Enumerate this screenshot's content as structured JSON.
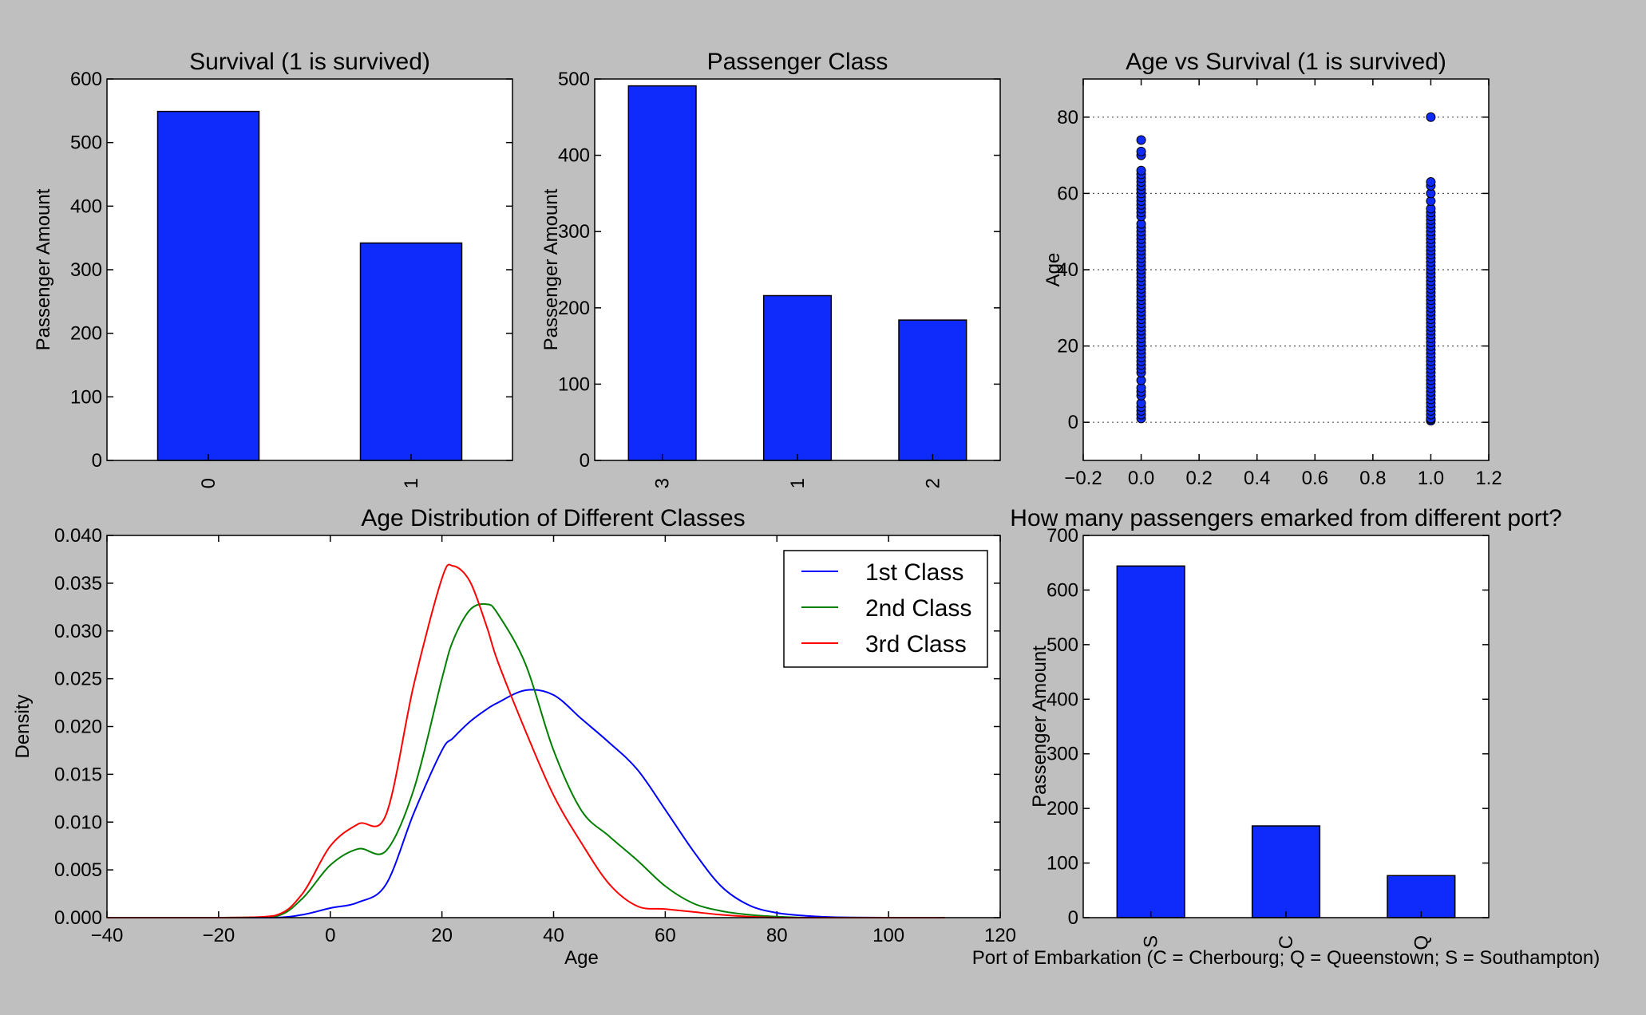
{
  "chart_data": [
    {
      "type": "bar",
      "title": "Survival (1 is survived)",
      "xlabel": "",
      "ylabel": "Passenger Amount",
      "categories": [
        "0",
        "1"
      ],
      "values": [
        549,
        342
      ],
      "ylim": [
        0,
        600
      ],
      "yticks": [
        0,
        100,
        200,
        300,
        400,
        500,
        600
      ],
      "grid": false,
      "bar_color": "#0f2bfb"
    },
    {
      "type": "bar",
      "title": "Passenger Class",
      "xlabel": "",
      "ylabel": "Passenger Amount",
      "categories": [
        "3",
        "1",
        "2"
      ],
      "values": [
        491,
        216,
        184
      ],
      "ylim": [
        0,
        500
      ],
      "yticks": [
        0,
        100,
        200,
        300,
        400,
        500
      ],
      "grid": false,
      "bar_color": "#0f2bfb"
    },
    {
      "type": "scatter",
      "title": "Age vs Survival (1 is survived)",
      "xlabel": "",
      "ylabel": "Age",
      "xlim": [
        -0.2,
        1.2
      ],
      "ylim": [
        -10,
        90
      ],
      "xticks": [
        "−0.2",
        "0.0",
        "0.2",
        "0.4",
        "0.6",
        "0.8",
        "1.0",
        "1.2"
      ],
      "yticks": [
        0,
        20,
        40,
        60,
        80
      ],
      "grid": "y-dotted",
      "point_color": "#0f2bfb",
      "series": [
        {
          "x": 0,
          "y": [
            1,
            2,
            3,
            4,
            5,
            7,
            8,
            9,
            11,
            13,
            14,
            15,
            16,
            17,
            18,
            19,
            20,
            21,
            22,
            23,
            24,
            25,
            26,
            27,
            28,
            29,
            30,
            31,
            32,
            33,
            34,
            35,
            36,
            37,
            38,
            39,
            40,
            41,
            42,
            43,
            44,
            45,
            46,
            47,
            48,
            49,
            50,
            51,
            52,
            54,
            55,
            56,
            57,
            58,
            59,
            60,
            61,
            62,
            63,
            64,
            65,
            66,
            70,
            71,
            74
          ]
        },
        {
          "x": 1,
          "y": [
            0.4,
            0.8,
            1,
            2,
            3,
            4,
            5,
            6,
            7,
            8,
            9,
            10,
            11,
            12,
            13,
            14,
            15,
            16,
            17,
            18,
            19,
            20,
            21,
            22,
            23,
            24,
            25,
            26,
            27,
            28,
            29,
            30,
            31,
            32,
            33,
            34,
            35,
            36,
            37,
            38,
            39,
            40,
            41,
            42,
            43,
            44,
            45,
            46,
            47,
            48,
            49,
            50,
            51,
            52,
            53,
            54,
            55,
            56,
            58,
            60,
            62,
            63,
            80
          ]
        }
      ]
    },
    {
      "type": "line",
      "title": "Age Distribution of Different Classes",
      "xlabel": "Age",
      "ylabel": "Density",
      "xlim": [
        -40,
        120
      ],
      "ylim": [
        0,
        0.04
      ],
      "xticks": [
        "−40",
        "−20",
        "0",
        "20",
        "40",
        "60",
        "80",
        "100",
        "120"
      ],
      "yticks": [
        "0.000",
        "0.005",
        "0.010",
        "0.015",
        "0.020",
        "0.025",
        "0.030",
        "0.035",
        "0.040"
      ],
      "grid": false,
      "legend": "top-right",
      "x": [
        -40,
        -20,
        -10,
        -5,
        0,
        5,
        10,
        15,
        20,
        22,
        25,
        28,
        30,
        35,
        40,
        45,
        50,
        55,
        60,
        65,
        70,
        75,
        80,
        85,
        90,
        100,
        110
      ],
      "series": [
        {
          "name": "1st Class",
          "color": "#0000ff",
          "values": [
            0,
            0,
            0,
            0.0003,
            0.001,
            0.0016,
            0.0035,
            0.011,
            0.0175,
            0.0188,
            0.0205,
            0.0218,
            0.0225,
            0.0238,
            0.0233,
            0.0208,
            0.0183,
            0.0155,
            0.0113,
            0.007,
            0.0033,
            0.0013,
            0.0005,
            0.0002,
            5e-05,
            0,
            0
          ]
        },
        {
          "name": "2nd Class",
          "color": "#007f00",
          "values": [
            0,
            0,
            0.0001,
            0.002,
            0.0055,
            0.0072,
            0.007,
            0.0135,
            0.025,
            0.029,
            0.0322,
            0.0328,
            0.0318,
            0.0265,
            0.0175,
            0.0112,
            0.0085,
            0.006,
            0.0033,
            0.0015,
            0.0007,
            0.0003,
            0.0001,
            0,
            0,
            0,
            0
          ]
        },
        {
          "name": "3rd Class",
          "color": "#ff0000",
          "values": [
            0,
            0,
            0.0002,
            0.0025,
            0.0075,
            0.0098,
            0.0108,
            0.0245,
            0.0355,
            0.0368,
            0.0352,
            0.0305,
            0.0268,
            0.0195,
            0.0128,
            0.0078,
            0.0035,
            0.0012,
            0.0009,
            0.0006,
            0.0003,
            0.0001,
            0,
            0,
            0,
            0,
            0
          ]
        }
      ]
    },
    {
      "type": "bar",
      "title": "How many passengers emarked from different port?",
      "xlabel": "Port of Embarkation (C = Cherbourg; Q = Queenstown; S = Southampton)",
      "ylabel": "Passenger Amount",
      "categories": [
        "S",
        "C",
        "Q"
      ],
      "values": [
        644,
        168,
        77
      ],
      "ylim": [
        0,
        700
      ],
      "yticks": [
        0,
        100,
        200,
        300,
        400,
        500,
        600,
        700
      ],
      "grid": false,
      "bar_color": "#0f2bfb"
    }
  ]
}
